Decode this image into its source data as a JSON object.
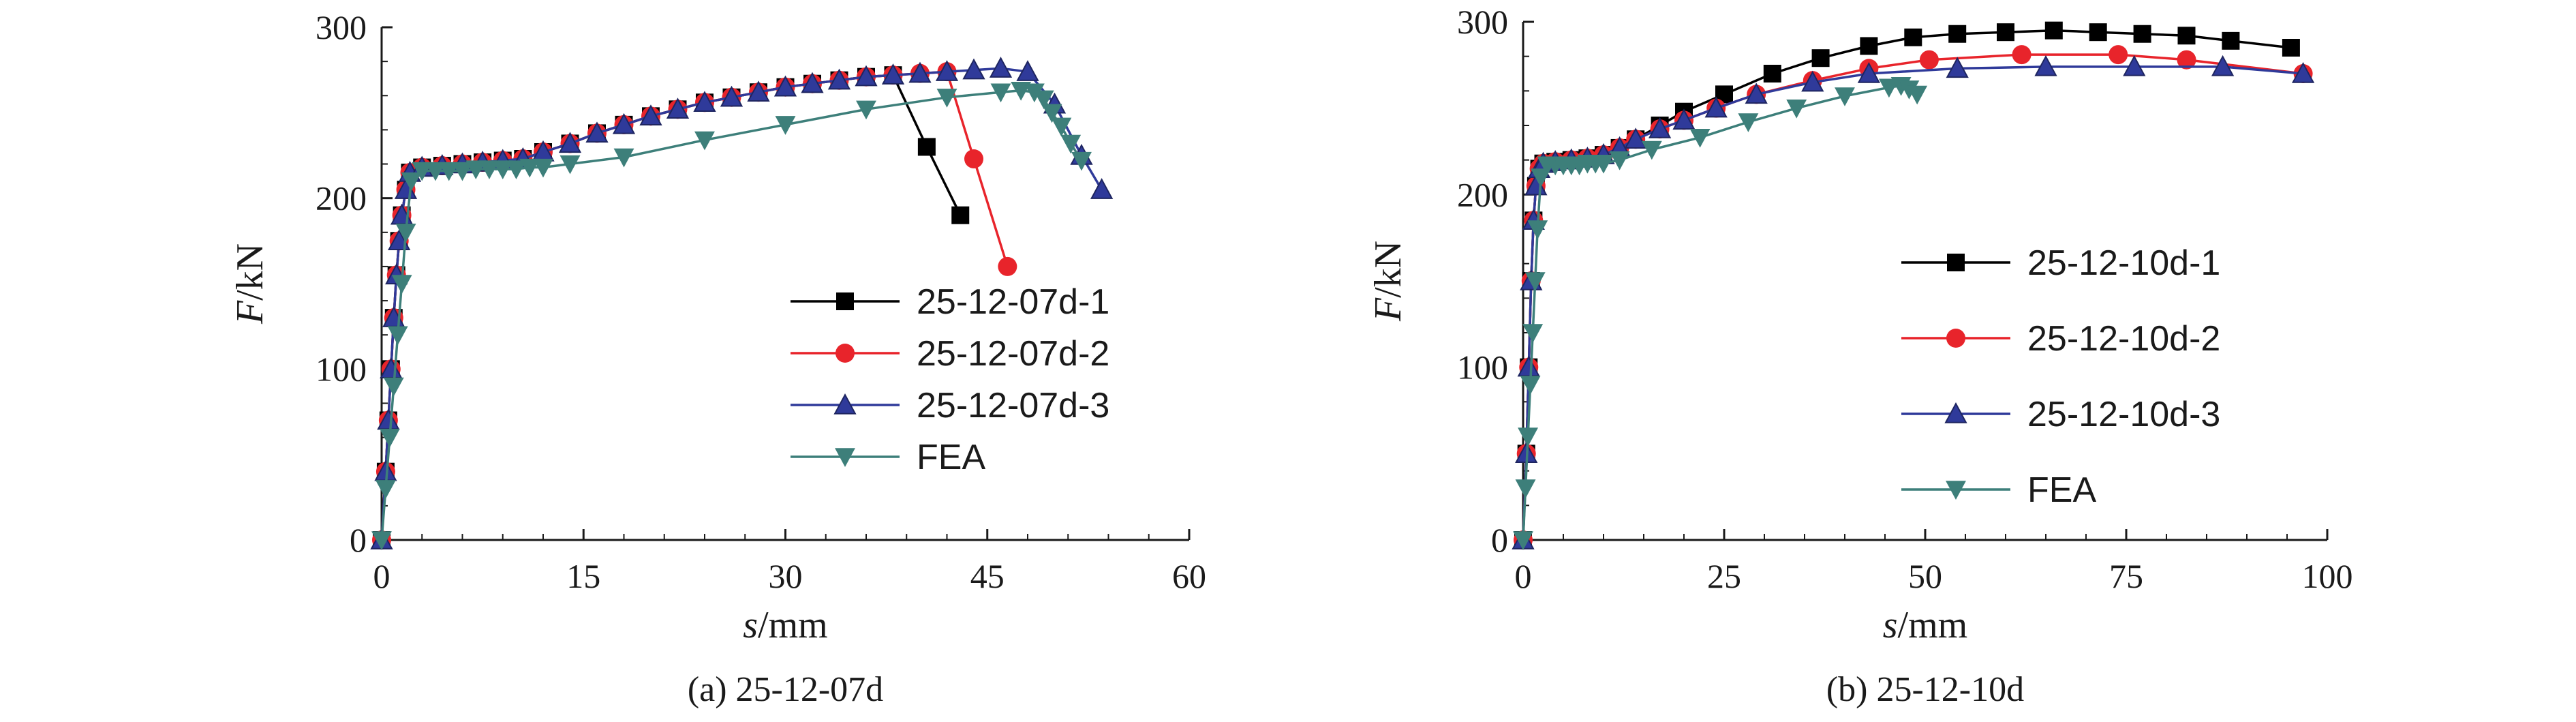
{
  "chart_data": [
    {
      "type": "line",
      "caption": "(a) 25-12-07d",
      "xlabel_var": "s",
      "xlabel_unit": "/mm",
      "ylabel_var": "F",
      "ylabel_unit": "/kN",
      "xlim": [
        0,
        60
      ],
      "ylim": [
        0,
        300
      ],
      "xticks": [
        0,
        15,
        30,
        45,
        60
      ],
      "yticks": [
        0,
        100,
        200,
        300
      ],
      "grid": false,
      "legend_position": "lower-right",
      "series": [
        {
          "name": "25-12-07d-1",
          "color": "#000000",
          "marker": "square",
          "x": [
            0,
            0.3,
            0.5,
            0.7,
            0.9,
            1.1,
            1.3,
            1.5,
            1.8,
            2.1,
            3,
            4.5,
            6,
            7.5,
            9,
            10.5,
            12,
            14,
            16,
            18,
            20,
            22,
            24,
            26,
            28,
            30,
            32,
            34,
            36,
            38,
            40.5,
            43
          ],
          "y": [
            0,
            40,
            70,
            100,
            130,
            155,
            175,
            190,
            205,
            215,
            218,
            219,
            220,
            221,
            222,
            223,
            227,
            232,
            238,
            243,
            248,
            252,
            256,
            259,
            262,
            265,
            267,
            269,
            271,
            272,
            230,
            190
          ]
        },
        {
          "name": "25-12-07d-2",
          "color": "#e8242b",
          "marker": "circle",
          "x": [
            0,
            0.3,
            0.5,
            0.7,
            0.9,
            1.1,
            1.3,
            1.5,
            1.8,
            2.1,
            3,
            4.5,
            6,
            7.5,
            9,
            10.5,
            12,
            14,
            16,
            18,
            20,
            22,
            24,
            26,
            28,
            30,
            32,
            34,
            36,
            38,
            40,
            42,
            44,
            46.5
          ],
          "y": [
            0,
            40,
            70,
            100,
            130,
            155,
            175,
            190,
            205,
            215,
            218,
            219,
            220,
            221,
            222,
            223,
            227,
            232,
            238,
            243,
            248,
            252,
            256,
            259,
            262,
            265,
            267,
            269,
            271,
            272,
            273,
            274,
            223,
            160
          ]
        },
        {
          "name": "25-12-07d-3",
          "color": "#2f3a9a",
          "marker": "triangle-up",
          "x": [
            0,
            0.3,
            0.5,
            0.7,
            0.9,
            1.1,
            1.3,
            1.5,
            1.8,
            2.1,
            3,
            4.5,
            6,
            7.5,
            9,
            10.5,
            12,
            14,
            16,
            18,
            20,
            22,
            24,
            26,
            28,
            30,
            32,
            34,
            36,
            38,
            40,
            42,
            44,
            46,
            48,
            50,
            52,
            53.5
          ],
          "y": [
            0,
            40,
            70,
            100,
            130,
            155,
            175,
            190,
            205,
            215,
            218,
            219,
            220,
            221,
            222,
            223,
            227,
            232,
            238,
            243,
            248,
            252,
            256,
            259,
            262,
            265,
            267,
            269,
            271,
            272,
            273,
            274,
            275,
            276,
            274,
            255,
            225,
            205
          ]
        },
        {
          "name": "FEA",
          "color": "#3d7f7a",
          "marker": "triangle-down",
          "x": [
            0,
            0.3,
            0.6,
            0.9,
            1.2,
            1.5,
            1.8,
            2.2,
            3,
            4,
            5,
            6,
            7,
            8,
            9,
            10,
            11,
            12,
            14,
            18,
            24,
            30,
            36,
            42,
            46,
            47.5,
            48.5,
            49.2,
            49.8,
            50.5,
            51.2,
            52
          ],
          "y": [
            0,
            30,
            60,
            90,
            120,
            150,
            180,
            210,
            216,
            216,
            216,
            216,
            217,
            217,
            217,
            217,
            218,
            218,
            220,
            224,
            234,
            243,
            252,
            259,
            262,
            263,
            262,
            258,
            250,
            242,
            232,
            222
          ]
        }
      ]
    },
    {
      "type": "line",
      "caption": "(b) 25-12-10d",
      "xlabel_var": "s",
      "xlabel_unit": "/mm",
      "ylabel_var": "F",
      "ylabel_unit": "/kN",
      "xlim": [
        0,
        100
      ],
      "ylim": [
        0,
        300
      ],
      "xticks": [
        0,
        25,
        50,
        75,
        100
      ],
      "yticks": [
        0,
        100,
        200,
        300
      ],
      "grid": false,
      "legend_position": "lower-right",
      "series": [
        {
          "name": "25-12-10d-1",
          "color": "#000000",
          "marker": "square",
          "x": [
            0,
            0.4,
            0.7,
            1,
            1.3,
            1.6,
            2,
            2.5,
            4,
            6,
            8,
            10,
            12,
            14,
            17,
            20,
            25,
            31,
            37,
            43,
            48.5,
            54,
            60,
            66,
            71.5,
            77,
            82.5,
            88,
            95.5
          ],
          "y": [
            0,
            50,
            100,
            150,
            185,
            205,
            215,
            218,
            219,
            220,
            221,
            223,
            227,
            232,
            240,
            248,
            258,
            270,
            279,
            286,
            291,
            293,
            294,
            295,
            294,
            293,
            292,
            289,
            285
          ]
        },
        {
          "name": "25-12-10d-2",
          "color": "#e8242b",
          "marker": "circle",
          "x": [
            0,
            0.4,
            0.7,
            1,
            1.3,
            1.6,
            2,
            2.5,
            4,
            6,
            8,
            10,
            12,
            14,
            17,
            20,
            24,
            29,
            36,
            43,
            50.5,
            62,
            74,
            82.5,
            97
          ],
          "y": [
            0,
            50,
            100,
            150,
            185,
            205,
            215,
            218,
            219,
            220,
            221,
            223,
            227,
            232,
            238,
            243,
            250,
            258,
            266,
            273,
            278,
            281,
            281,
            278,
            270
          ]
        },
        {
          "name": "25-12-10d-3",
          "color": "#2f3a9a",
          "marker": "triangle-up",
          "x": [
            0,
            0.4,
            0.7,
            1,
            1.3,
            1.6,
            2,
            2.5,
            4,
            6,
            8,
            10,
            12,
            14,
            17,
            20,
            24,
            29,
            36,
            43,
            54,
            65,
            76,
            87,
            97
          ],
          "y": [
            0,
            50,
            100,
            150,
            185,
            205,
            215,
            218,
            219,
            220,
            221,
            223,
            227,
            232,
            238,
            243,
            250,
            258,
            265,
            270,
            273,
            274,
            274,
            274,
            270
          ]
        },
        {
          "name": "FEA",
          "color": "#3d7f7a",
          "marker": "triangle-down",
          "x": [
            0,
            0.3,
            0.6,
            0.9,
            1.2,
            1.5,
            1.8,
            2.2,
            3,
            4,
            5,
            6,
            7,
            8,
            9,
            10,
            12,
            16,
            22,
            28,
            34,
            40,
            45.5,
            47,
            48,
            49
          ],
          "y": [
            0,
            30,
            60,
            90,
            120,
            150,
            180,
            210,
            217,
            217,
            217,
            217,
            217,
            218,
            218,
            218,
            220,
            226,
            233,
            242,
            250,
            257,
            262,
            263,
            261,
            258
          ]
        }
      ]
    }
  ]
}
